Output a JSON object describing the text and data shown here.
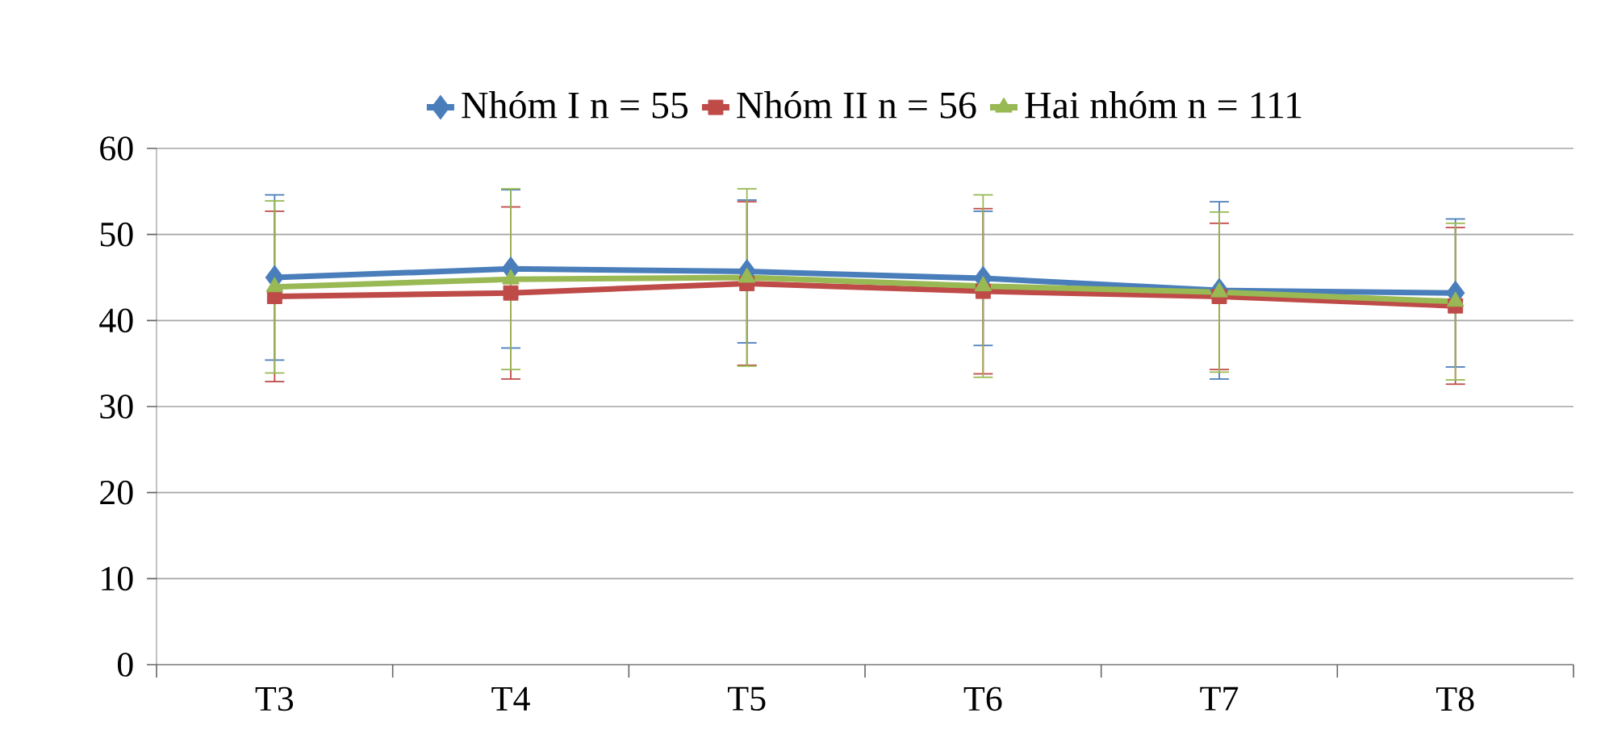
{
  "chart_data": {
    "type": "line",
    "categories": [
      "T3",
      "T4",
      "T5",
      "T6",
      "T7",
      "T8"
    ],
    "series": [
      {
        "name": "Nhóm I n = 55",
        "color": "#4a7ebb",
        "marker": "diamond",
        "values": [
          45.0,
          46.0,
          45.7,
          44.9,
          43.5,
          43.2
        ],
        "errors": [
          9.6,
          9.2,
          8.3,
          7.8,
          10.3,
          8.6
        ]
      },
      {
        "name": "Nhóm II n = 56",
        "color": "#be4b48",
        "marker": "square",
        "values": [
          42.8,
          43.2,
          44.3,
          43.4,
          42.8,
          41.7
        ],
        "errors": [
          9.9,
          10.0,
          9.5,
          9.6,
          8.5,
          9.1
        ]
      },
      {
        "name": "Hai nhóm n = 111",
        "color": "#98b954",
        "marker": "triangle",
        "values": [
          43.9,
          44.8,
          45.0,
          44.0,
          43.3,
          42.2
        ],
        "errors": [
          10.0,
          10.5,
          10.3,
          10.6,
          9.3,
          9.1
        ]
      }
    ],
    "ylim": [
      0,
      60
    ],
    "yticks": [
      0,
      10,
      20,
      30,
      40,
      50,
      60
    ],
    "grid": "y",
    "legend": "top"
  }
}
